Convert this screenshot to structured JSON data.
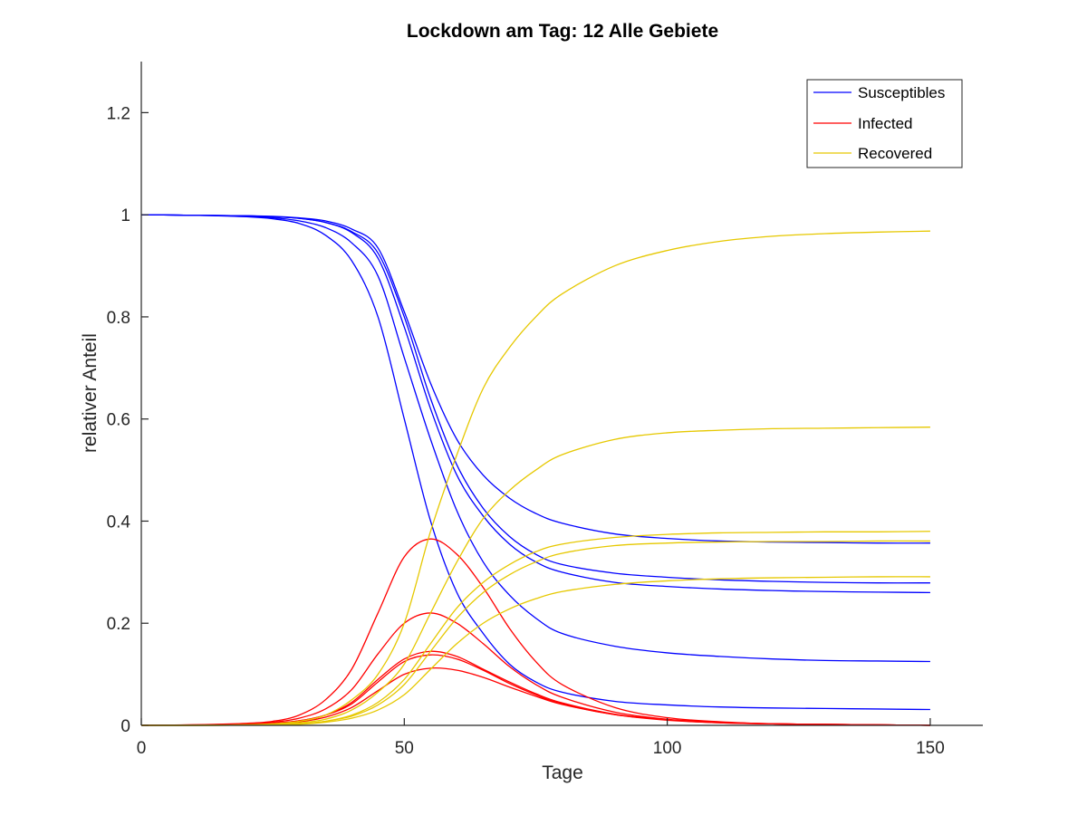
{
  "chart_data": {
    "type": "line",
    "title": "Lockdown am Tag: 12  Alle Gebiete",
    "xlabel": "Tage",
    "ylabel": "relativer Anteil",
    "xlim": [
      0,
      160
    ],
    "ylim": [
      0,
      1.3
    ],
    "xticks": [
      0,
      50,
      100,
      150
    ],
    "yticks": [
      0,
      0.2,
      0.4,
      0.6,
      0.8,
      1,
      1.2
    ],
    "xtick_labels": [
      "0",
      "50",
      "100",
      "150"
    ],
    "ytick_labels": [
      "0",
      "0.2",
      "0.4",
      "0.6",
      "0.8",
      "1",
      "1.2"
    ],
    "grid": false,
    "legend": {
      "placement": "top-right",
      "entries": [
        {
          "label": "Susceptibles",
          "color": "#0000ff"
        },
        {
          "label": "Infected",
          "color": "#ff0000"
        },
        {
          "label": "Recovered",
          "color": "#e6c800"
        }
      ]
    },
    "x": [
      0,
      10,
      20,
      25,
      30,
      35,
      40,
      45,
      50,
      55,
      60,
      65,
      70,
      75,
      80,
      90,
      100,
      110,
      120,
      130,
      140,
      150
    ],
    "series": [
      {
        "group": "Susceptibles",
        "color": "#0000ff",
        "values": [
          1.0,
          0.999,
          0.996,
          0.992,
          0.983,
          0.96,
          0.91,
          0.8,
          0.6,
          0.4,
          0.26,
          0.18,
          0.12,
          0.085,
          0.065,
          0.047,
          0.04,
          0.036,
          0.034,
          0.033,
          0.032,
          0.031
        ]
      },
      {
        "group": "Susceptibles",
        "color": "#0000ff",
        "values": [
          1.0,
          0.999,
          0.997,
          0.994,
          0.988,
          0.975,
          0.945,
          0.88,
          0.72,
          0.56,
          0.42,
          0.32,
          0.255,
          0.21,
          0.18,
          0.155,
          0.142,
          0.135,
          0.13,
          0.127,
          0.126,
          0.125
        ]
      },
      {
        "group": "Susceptibles",
        "color": "#0000ff",
        "values": [
          1.0,
          0.999,
          0.998,
          0.996,
          0.993,
          0.985,
          0.965,
          0.915,
          0.78,
          0.62,
          0.49,
          0.41,
          0.355,
          0.32,
          0.3,
          0.28,
          0.272,
          0.267,
          0.264,
          0.262,
          0.261,
          0.26
        ]
      },
      {
        "group": "Susceptibles",
        "color": "#0000ff",
        "values": [
          1.0,
          0.999,
          0.998,
          0.996,
          0.993,
          0.985,
          0.967,
          0.925,
          0.8,
          0.64,
          0.51,
          0.425,
          0.37,
          0.335,
          0.315,
          0.298,
          0.29,
          0.285,
          0.282,
          0.28,
          0.279,
          0.279
        ]
      },
      {
        "group": "Susceptibles",
        "color": "#0000ff",
        "values": [
          1.0,
          0.999,
          0.998,
          0.997,
          0.994,
          0.988,
          0.972,
          0.935,
          0.81,
          0.67,
          0.56,
          0.49,
          0.445,
          0.415,
          0.396,
          0.375,
          0.366,
          0.361,
          0.359,
          0.358,
          0.357,
          0.357
        ]
      },
      {
        "group": "Infected",
        "color": "#ff0000",
        "values": [
          0.0,
          0.001,
          0.004,
          0.008,
          0.02,
          0.05,
          0.11,
          0.22,
          0.33,
          0.365,
          0.335,
          0.27,
          0.19,
          0.125,
          0.08,
          0.035,
          0.015,
          0.007,
          0.003,
          0.002,
          0.001,
          0.0
        ]
      },
      {
        "group": "Infected",
        "color": "#ff0000",
        "values": [
          0.0,
          0.001,
          0.003,
          0.006,
          0.014,
          0.032,
          0.07,
          0.14,
          0.2,
          0.22,
          0.2,
          0.16,
          0.115,
          0.08,
          0.055,
          0.026,
          0.012,
          0.006,
          0.003,
          0.002,
          0.001,
          0.0
        ]
      },
      {
        "group": "Infected",
        "color": "#ff0000",
        "values": [
          0.0,
          0.0005,
          0.002,
          0.004,
          0.009,
          0.02,
          0.045,
          0.09,
          0.13,
          0.145,
          0.135,
          0.11,
          0.085,
          0.062,
          0.044,
          0.022,
          0.011,
          0.005,
          0.003,
          0.002,
          0.001,
          0.0
        ]
      },
      {
        "group": "Infected",
        "color": "#ff0000",
        "values": [
          0.0,
          0.0005,
          0.002,
          0.004,
          0.009,
          0.02,
          0.042,
          0.085,
          0.125,
          0.138,
          0.13,
          0.108,
          0.082,
          0.06,
          0.042,
          0.021,
          0.01,
          0.005,
          0.003,
          0.002,
          0.001,
          0.0
        ]
      },
      {
        "group": "Infected",
        "color": "#ff0000",
        "values": [
          0.0,
          0.0005,
          0.0015,
          0.003,
          0.007,
          0.016,
          0.035,
          0.068,
          0.1,
          0.112,
          0.108,
          0.094,
          0.075,
          0.057,
          0.041,
          0.021,
          0.011,
          0.006,
          0.003,
          0.002,
          0.001,
          0.0
        ]
      },
      {
        "group": "Recovered",
        "color": "#e6c800",
        "values": [
          0.0,
          0.0,
          0.001,
          0.003,
          0.008,
          0.02,
          0.05,
          0.1,
          0.2,
          0.38,
          0.53,
          0.66,
          0.74,
          0.8,
          0.845,
          0.9,
          0.93,
          0.948,
          0.958,
          0.963,
          0.966,
          0.968
        ]
      },
      {
        "group": "Recovered",
        "color": "#e6c800",
        "values": [
          0.0,
          0.0,
          0.001,
          0.002,
          0.005,
          0.012,
          0.03,
          0.065,
          0.12,
          0.22,
          0.32,
          0.405,
          0.46,
          0.5,
          0.53,
          0.56,
          0.573,
          0.578,
          0.581,
          0.582,
          0.583,
          0.584
        ]
      },
      {
        "group": "Recovered",
        "color": "#e6c800",
        "values": [
          0.0,
          0.0,
          0.0005,
          0.001,
          0.003,
          0.008,
          0.02,
          0.045,
          0.09,
          0.16,
          0.23,
          0.28,
          0.315,
          0.34,
          0.355,
          0.368,
          0.374,
          0.377,
          0.378,
          0.379,
          0.379,
          0.38
        ]
      },
      {
        "group": "Recovered",
        "color": "#e6c800",
        "values": [
          0.0,
          0.0,
          0.0005,
          0.001,
          0.003,
          0.008,
          0.018,
          0.04,
          0.08,
          0.145,
          0.21,
          0.26,
          0.295,
          0.32,
          0.337,
          0.352,
          0.357,
          0.359,
          0.36,
          0.36,
          0.361,
          0.361
        ]
      },
      {
        "group": "Recovered",
        "color": "#e6c800",
        "values": [
          0.0,
          0.0,
          0.0005,
          0.001,
          0.002,
          0.006,
          0.014,
          0.03,
          0.06,
          0.11,
          0.16,
          0.2,
          0.228,
          0.248,
          0.262,
          0.276,
          0.283,
          0.287,
          0.289,
          0.29,
          0.291,
          0.291
        ]
      }
    ]
  }
}
